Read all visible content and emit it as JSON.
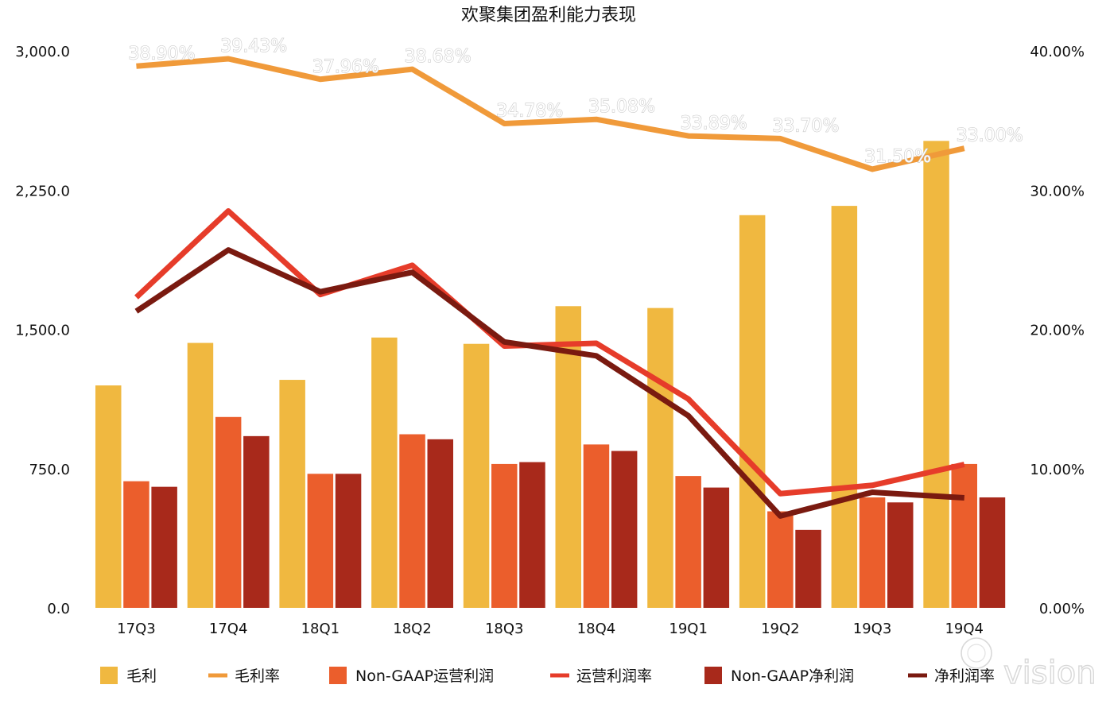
{
  "chart_data": {
    "type": "bar",
    "title": "欢聚集团盈利能力表现",
    "categories": [
      "17Q3",
      "17Q4",
      "18Q1",
      "18Q2",
      "18Q3",
      "18Q4",
      "19Q1",
      "19Q2",
      "19Q3",
      "19Q4"
    ],
    "y_left": {
      "range": [
        0,
        3000
      ],
      "ticks": [
        0,
        750,
        1500,
        2250,
        3000
      ],
      "tick_labels": [
        "0.0",
        "750.0",
        "1,500.0",
        "2,250.0",
        "3,000.0"
      ]
    },
    "y_right": {
      "range": [
        0,
        40
      ],
      "ticks": [
        0,
        10,
        20,
        30,
        40
      ],
      "tick_labels": [
        "0.00%",
        "10.00%",
        "20.00%",
        "30.00%",
        "40.00%"
      ]
    },
    "bar_series": [
      {
        "name": "毛利",
        "color": "#f0b840",
        "values": [
          1198,
          1427,
          1228,
          1456,
          1422,
          1625,
          1615,
          2115,
          2165,
          2515
        ]
      },
      {
        "name": "Non-GAAP运营利润",
        "color": "#eb5e2c",
        "values": [
          682,
          1028,
          722,
          935,
          775,
          880,
          710,
          520,
          595,
          775
        ]
      },
      {
        "name": "Non-GAAP净利润",
        "color": "#a8291b",
        "values": [
          652,
          925,
          722,
          908,
          785,
          845,
          648,
          420,
          568,
          595
        ]
      }
    ],
    "line_series": [
      {
        "name": "毛利率",
        "color": "#f09a3a",
        "values": [
          38.9,
          39.43,
          37.96,
          38.68,
          34.78,
          35.08,
          33.89,
          33.7,
          31.5,
          33.0
        ],
        "labels": [
          "38.90%",
          "39.43%",
          "37.96%",
          "38.68%",
          "34.78%",
          "35.08%",
          "33.89%",
          "33.70%",
          "31.50%",
          "33.00%"
        ]
      },
      {
        "name": "运营利润率",
        "color": "#e63c2a",
        "values": [
          22.3,
          28.5,
          22.5,
          24.6,
          18.8,
          19.0,
          15.0,
          8.2,
          8.8,
          10.3
        ]
      },
      {
        "name": "净利润率",
        "color": "#7a1a10",
        "values": [
          21.3,
          25.7,
          22.7,
          24.1,
          19.1,
          18.1,
          13.8,
          6.6,
          8.3,
          7.9
        ]
      }
    ],
    "legend": [
      {
        "name": "毛利",
        "kind": "bar",
        "color": "#f0b840"
      },
      {
        "name": "毛利率",
        "kind": "line",
        "color": "#f09a3a"
      },
      {
        "name": "Non-GAAP运营利润",
        "kind": "bar",
        "color": "#eb5e2c"
      },
      {
        "name": "运营利润率",
        "kind": "line",
        "color": "#e63c2a"
      },
      {
        "name": "Non-GAAP净利润",
        "kind": "bar",
        "color": "#a8291b"
      },
      {
        "name": "净利润率",
        "kind": "line",
        "color": "#7a1a10"
      }
    ],
    "legend_position": "bottom",
    "grid": false,
    "watermark": "vision"
  }
}
